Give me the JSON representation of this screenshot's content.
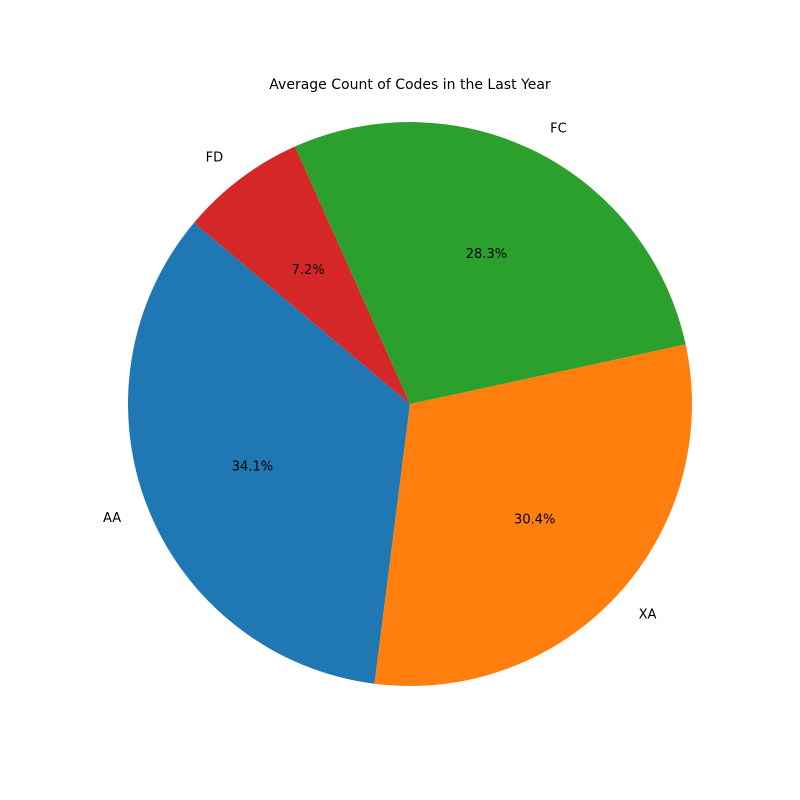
{
  "chart_data": {
    "type": "pie",
    "title": "Average Count of Codes in the Last Year",
    "labels": [
      "AA",
      "XA",
      "FC",
      "FD"
    ],
    "values": [
      34.1,
      30.4,
      28.3,
      7.2
    ],
    "percent_labels": [
      "34.1%",
      "30.4%",
      "28.3%",
      "7.2%"
    ],
    "colors": [
      "#1f77b4",
      "#ff7f0e",
      "#2ca02c",
      "#d62728"
    ],
    "start_angle_deg": 140,
    "direction": "counterclockwise"
  }
}
